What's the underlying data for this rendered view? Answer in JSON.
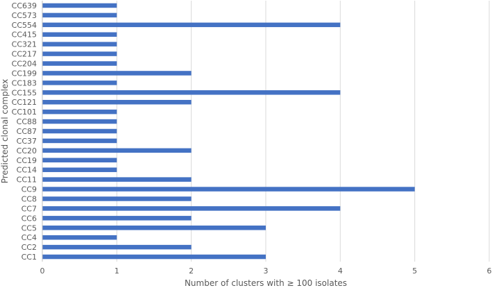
{
  "chart_data": {
    "type": "bar",
    "orientation": "horizontal",
    "title": "",
    "xlabel": "Number of clusters with ≥ 100 isolates",
    "ylabel": "Predicted  clonal complex",
    "categories": [
      "CC1",
      "CC2",
      "CC4",
      "CC5",
      "CC6",
      "CC7",
      "CC8",
      "CC9",
      "CC11",
      "CC14",
      "CC19",
      "CC20",
      "CC37",
      "CC87",
      "CC88",
      "CC101",
      "CC121",
      "CC155",
      "CC183",
      "CC199",
      "CC204",
      "CC217",
      "CC321",
      "CC415",
      "CC554",
      "CC573",
      "CC639"
    ],
    "values": [
      3,
      2,
      1,
      3,
      2,
      4,
      2,
      5,
      2,
      1,
      1,
      2,
      1,
      1,
      1,
      1,
      2,
      4,
      1,
      2,
      1,
      1,
      1,
      1,
      4,
      1,
      1
    ],
    "xlim": [
      0,
      6
    ],
    "xticks": [
      "0",
      "1",
      "2",
      "3",
      "4",
      "5",
      "6"
    ],
    "grid": "vertical",
    "legend": "none",
    "bar_color": "#4472C4",
    "grid_color": "#D9D9D9",
    "axis_color": "#BFBFBF"
  }
}
